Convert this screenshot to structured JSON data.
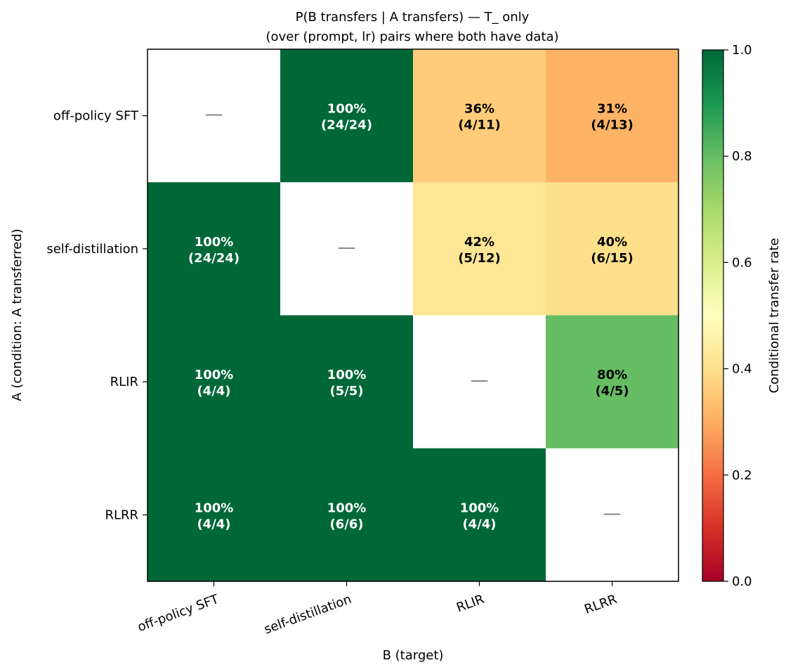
{
  "chart_data": {
    "type": "heatmap",
    "title_line1": "P(B transfers | A transfers) — T_ only",
    "title_line2": "(over (prompt, lr) pairs where both have data)",
    "xlabel": "B (target)",
    "ylabel": "A (condition: A transferred)",
    "rows": [
      "off-policy SFT",
      "self-distillation",
      "RLIR",
      "RLRR"
    ],
    "cols": [
      "off-policy SFT",
      "self-distillation",
      "RLIR",
      "RLRR"
    ],
    "values": [
      [
        null,
        1.0,
        0.36,
        0.31
      ],
      [
        1.0,
        null,
        0.42,
        0.4
      ],
      [
        1.0,
        1.0,
        null,
        0.8
      ],
      [
        1.0,
        1.0,
        1.0,
        null
      ]
    ],
    "cell_pct": [
      [
        "",
        "100%",
        "36%",
        "31%"
      ],
      [
        "100%",
        "",
        "42%",
        "40%"
      ],
      [
        "100%",
        "100%",
        "",
        "80%"
      ],
      [
        "100%",
        "100%",
        "100%",
        ""
      ]
    ],
    "cell_frac": [
      [
        "",
        "(24/24)",
        "(4/11)",
        "(4/13)"
      ],
      [
        "(24/24)",
        "",
        "(5/12)",
        "(6/15)"
      ],
      [
        "(4/4)",
        "(5/5)",
        "",
        "(4/5)"
      ],
      [
        "(4/4)",
        "(6/6)",
        "(4/4)",
        ""
      ]
    ],
    "diagonal_mark": "—",
    "colorbar": {
      "label": "Conditional transfer rate",
      "colormap": "RdYlGn",
      "range": [
        0.0,
        1.0
      ],
      "ticks": [
        "0.0",
        "0.2",
        "0.4",
        "0.6",
        "0.8",
        "1.0"
      ]
    }
  }
}
